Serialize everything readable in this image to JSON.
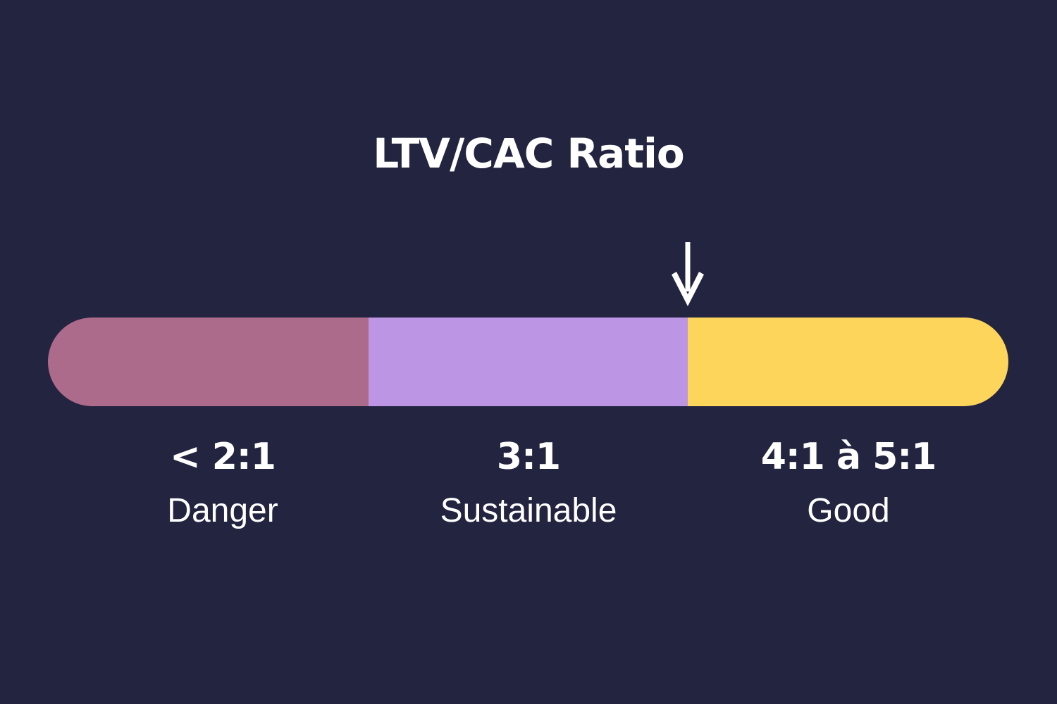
{
  "title": "LTV/CAC Ratio",
  "colors": {
    "background": "#222440",
    "danger": "#ad6b8c",
    "sustainable": "#bc95e4",
    "good": "#fdd55b",
    "text": "#ffffff"
  },
  "scale": {
    "segments": [
      {
        "value_label": "< 2:1",
        "name": "Danger"
      },
      {
        "value_label": "3:1",
        "name": "Sustainable"
      },
      {
        "value_label": "4:1 à 5:1",
        "name": "Good"
      }
    ]
  },
  "marker": {
    "icon": "arrow-down-icon"
  }
}
